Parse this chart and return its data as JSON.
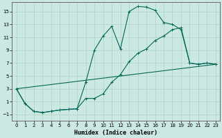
{
  "xlabel": "Humidex (Indice chaleur)",
  "bg_color": "#cce8e2",
  "grid_color": "#aad4c8",
  "line_color": "#006655",
  "xlim": [
    -0.5,
    23.5
  ],
  "ylim": [
    -2.0,
    16.5
  ],
  "xticks": [
    0,
    1,
    2,
    3,
    4,
    5,
    6,
    7,
    8,
    9,
    10,
    11,
    12,
    13,
    14,
    15,
    16,
    17,
    18,
    19,
    20,
    21,
    22,
    23
  ],
  "yticks": [
    -1,
    1,
    3,
    5,
    7,
    9,
    11,
    13,
    15
  ],
  "curve1_x": [
    0,
    1,
    2,
    3,
    4,
    5,
    6,
    7,
    8,
    9,
    10,
    11,
    12,
    13,
    14,
    15,
    16,
    17,
    18,
    19,
    20,
    21,
    22,
    23
  ],
  "curve1_y": [
    3.0,
    0.7,
    -0.5,
    -0.7,
    -0.5,
    -0.3,
    -0.2,
    -0.1,
    4.0,
    9.0,
    11.2,
    12.7,
    9.2,
    15.0,
    15.8,
    15.7,
    15.2,
    13.3,
    13.0,
    12.2,
    7.0,
    6.8,
    7.0,
    6.8
  ],
  "curve2_x": [
    0,
    1,
    2,
    3,
    4,
    5,
    6,
    7,
    8,
    9,
    10,
    11,
    12,
    13,
    14,
    15,
    16,
    17,
    18,
    19,
    20,
    21,
    22,
    23
  ],
  "curve2_y": [
    3.0,
    0.7,
    -0.5,
    -0.7,
    -0.5,
    -0.3,
    -0.2,
    -0.1,
    1.5,
    1.5,
    2.2,
    4.0,
    5.2,
    7.2,
    8.5,
    9.2,
    10.5,
    11.2,
    12.2,
    12.5,
    7.0,
    6.8,
    7.0,
    6.8
  ],
  "line3_x": [
    0,
    23
  ],
  "line3_y": [
    3.0,
    6.8
  ]
}
